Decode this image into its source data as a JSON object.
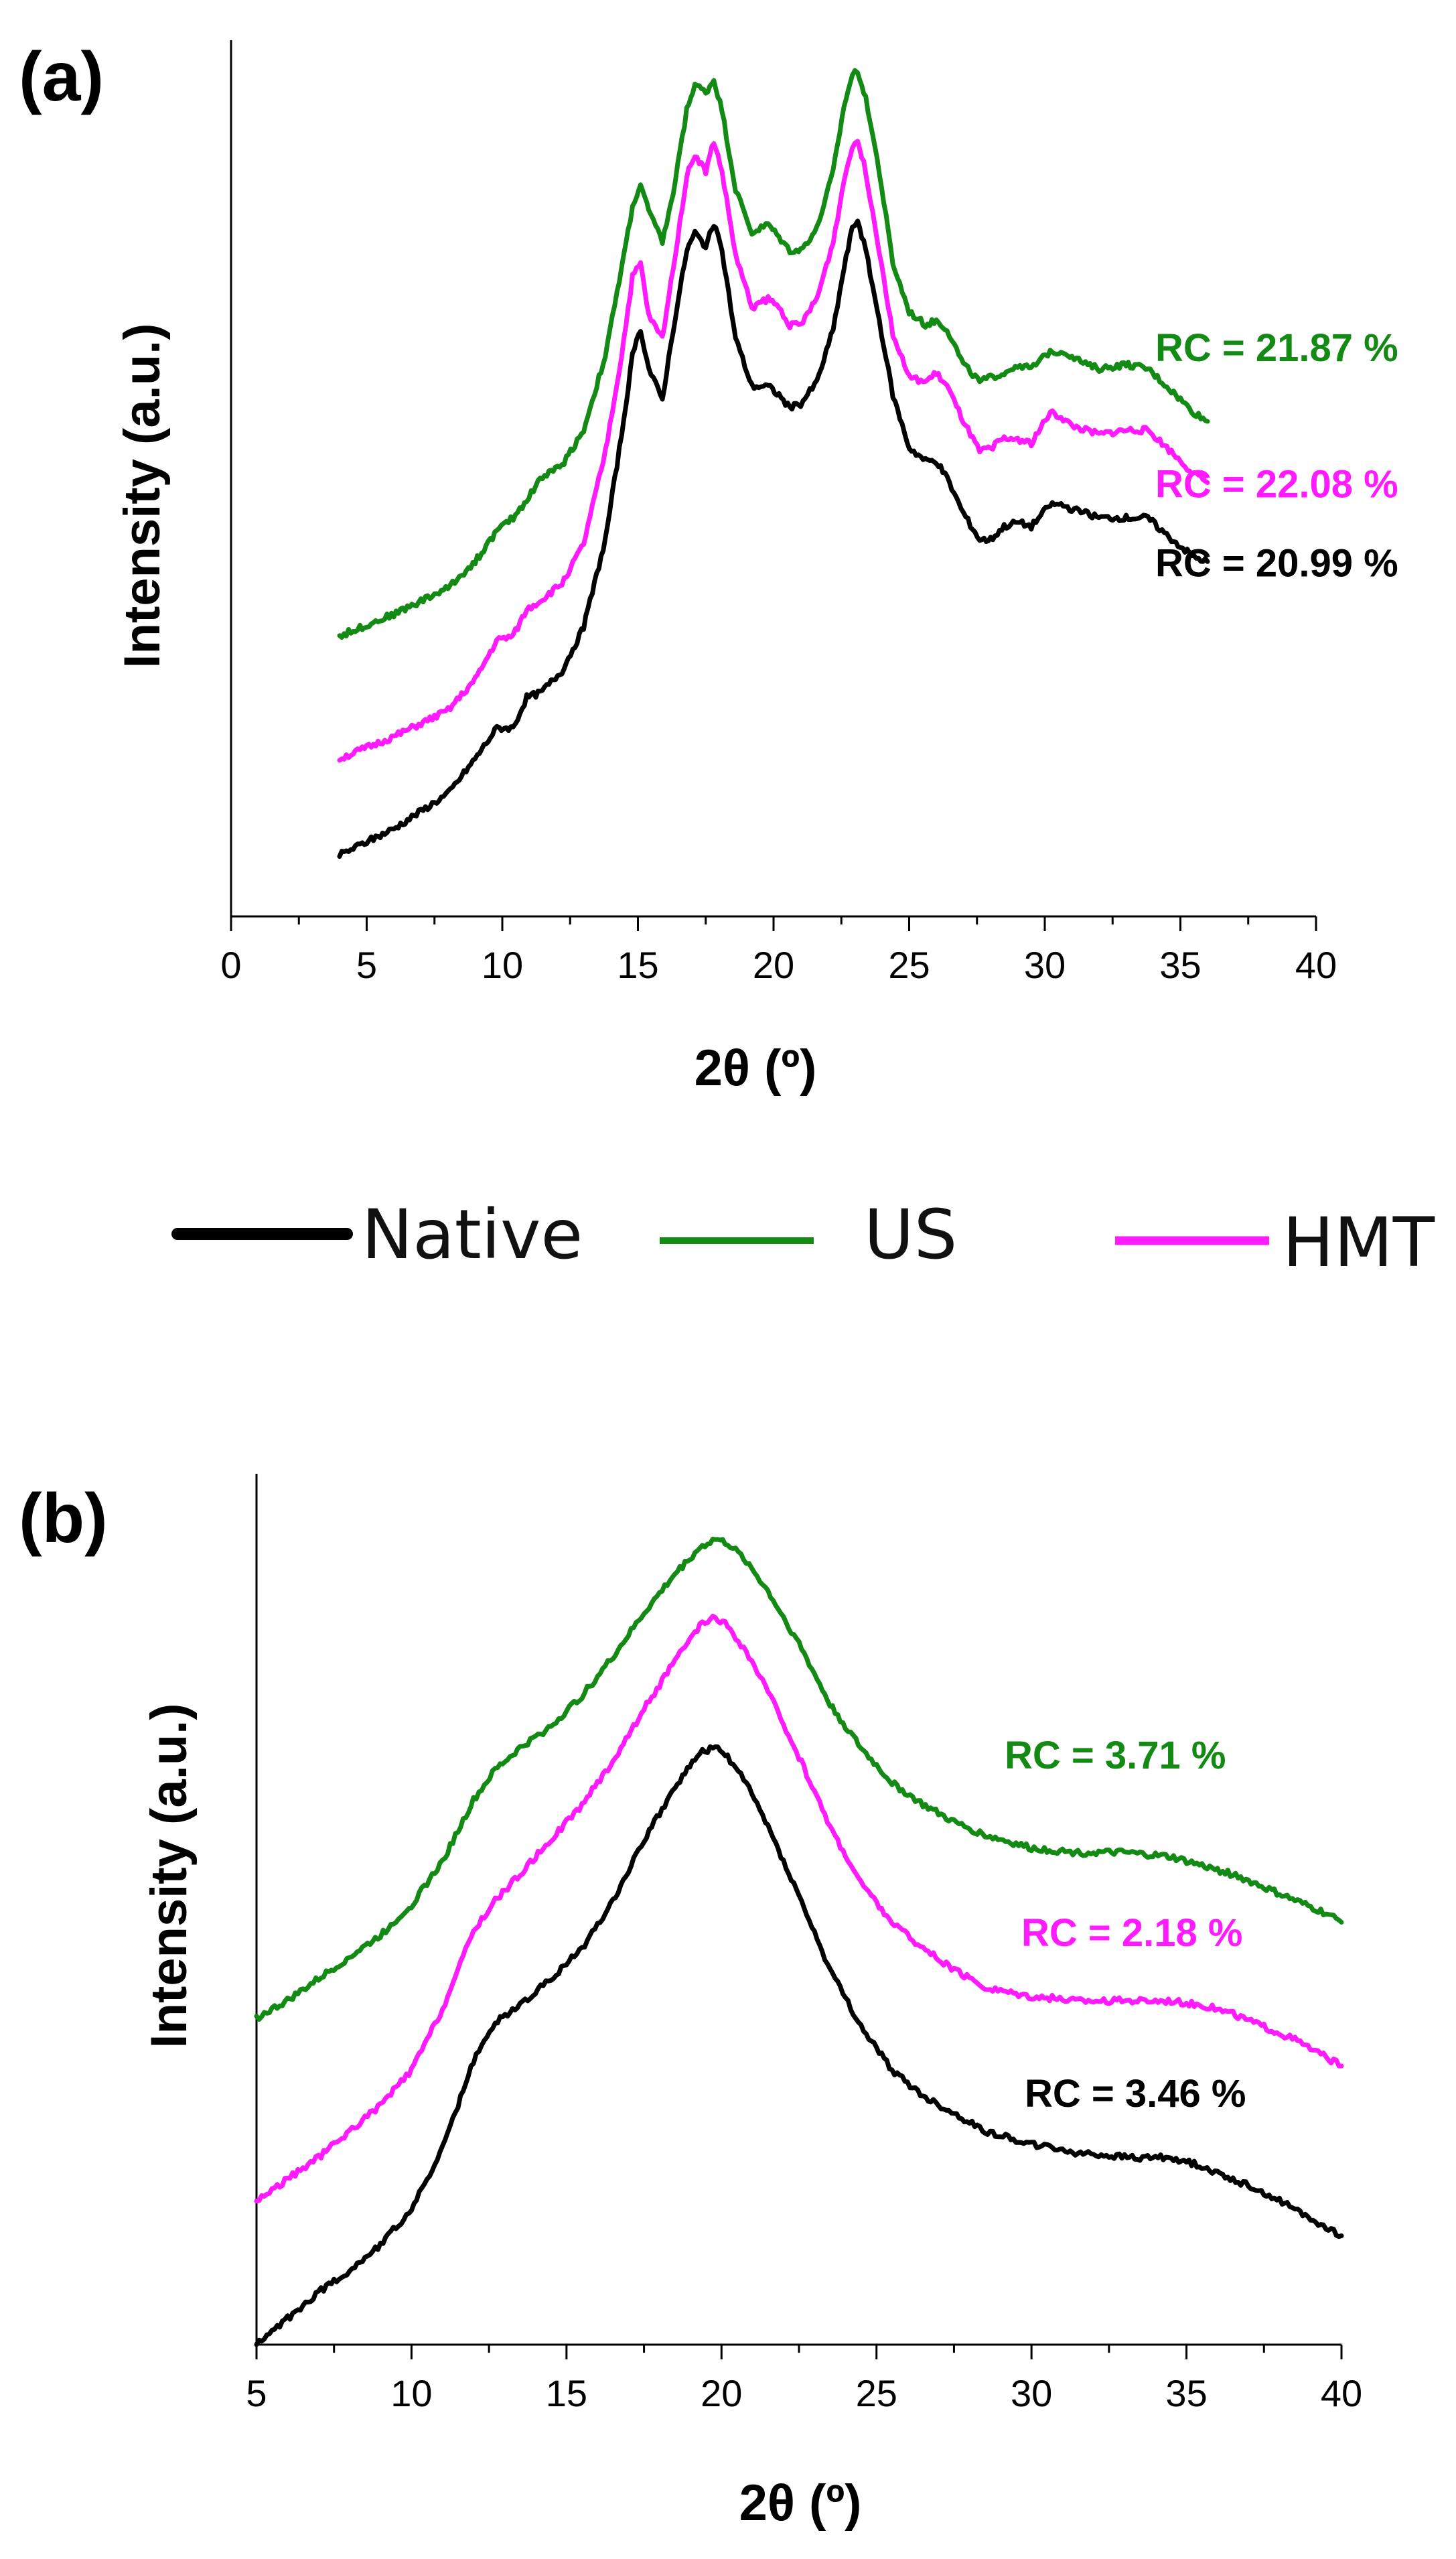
{
  "colors": {
    "native": "#000000",
    "us": "#138a13",
    "hmt": "#ff1aff"
  },
  "legend": [
    {
      "key": "native",
      "label": "Native"
    },
    {
      "key": "us",
      "label": "US"
    },
    {
      "key": "hmt",
      "label": "HMT"
    }
  ],
  "chart_data": [
    {
      "panel": "(a)",
      "type": "line",
      "xlabel": "2θ (º)",
      "ylabel": "Intensity (a.u.)",
      "xlim": [
        0,
        40
      ],
      "ylim": [
        0,
        100
      ],
      "xticks": [
        0,
        5,
        10,
        15,
        20,
        25,
        30,
        35,
        40
      ],
      "y_ticks_shown": false,
      "series": [
        {
          "key": "native",
          "name": "Native",
          "annotation": "RC = 20.99 %",
          "x": [
            4,
            6,
            8,
            9,
            9.8,
            10.4,
            10.9,
            11.4,
            12.2,
            13,
            13.8,
            14.4,
            14.8,
            15.1,
            15.4,
            15.9,
            16.3,
            16.8,
            17.1,
            17.5,
            17.8,
            18.1,
            18.6,
            19.2,
            19.8,
            20.2,
            20.6,
            21.0,
            21.6,
            22.2,
            22.6,
            22.9,
            23.1,
            23.4,
            23.9,
            24.4,
            25,
            25.6,
            26.0,
            26.4,
            27,
            27.6,
            28.0,
            28.5,
            29,
            29.5,
            30.2,
            30.6,
            31,
            31.5,
            32,
            33,
            33.8,
            34.5,
            35.5,
            36
          ],
          "y": [
            7,
            10,
            14,
            18,
            21.5,
            21.5,
            25,
            25.5,
            28,
            33,
            43,
            55,
            64,
            67,
            62.5,
            59,
            67,
            76,
            78,
            76.5,
            79,
            76,
            66,
            60.5,
            60.5,
            59.5,
            58,
            58.5,
            61,
            67,
            74,
            78.5,
            79.5,
            76,
            68,
            59.5,
            53.5,
            52,
            52,
            50,
            46,
            43,
            43,
            44.5,
            45,
            44.5,
            47,
            47,
            46.5,
            46,
            45.5,
            45.5,
            45.5,
            43.5,
            41,
            40.5
          ]
        },
        {
          "key": "hmt",
          "name": "HMT",
          "annotation": "RC = 22.08 %",
          "x": [
            4,
            6,
            8,
            9,
            9.8,
            10.4,
            10.9,
            11.4,
            12.2,
            13,
            13.8,
            14.4,
            14.8,
            15.1,
            15.4,
            15.9,
            16.3,
            16.8,
            17.1,
            17.5,
            17.8,
            18.1,
            18.6,
            19.2,
            19.8,
            20.2,
            20.6,
            21.0,
            21.6,
            22.2,
            22.6,
            22.9,
            23.1,
            23.4,
            23.9,
            24.4,
            25,
            25.6,
            26.0,
            26.4,
            27,
            27.6,
            28.0,
            28.5,
            29,
            29.5,
            30.2,
            30.6,
            31,
            31.5,
            32,
            33,
            33.8,
            34.5,
            35.5,
            36
          ],
          "y": [
            18,
            20.5,
            23.5,
            27,
            31.5,
            32,
            35,
            36,
            38,
            42.5,
            53,
            64,
            73,
            74.5,
            68.5,
            66,
            74,
            84.5,
            87,
            85,
            88.5,
            85,
            75.5,
            69.5,
            70.5,
            69.5,
            67.5,
            67.5,
            70.5,
            77,
            84,
            88,
            88.5,
            85,
            76,
            66.5,
            61.5,
            61,
            62,
            60.5,
            56.5,
            53,
            53.5,
            54.5,
            54.5,
            54,
            57.5,
            57,
            56,
            55.5,
            55,
            55.5,
            55.5,
            53.5,
            50.5,
            49.5
          ]
        },
        {
          "key": "us",
          "name": "US",
          "annotation": "RC = 21.87 %",
          "x": [
            4,
            6,
            8,
            9,
            9.8,
            10.4,
            10.9,
            11.4,
            12.2,
            13,
            13.8,
            14.4,
            14.8,
            15.1,
            15.4,
            15.9,
            16.3,
            16.8,
            17.1,
            17.5,
            17.8,
            18.1,
            18.6,
            19.2,
            19.8,
            20.2,
            20.6,
            21.0,
            21.6,
            22.2,
            22.6,
            22.9,
            23.1,
            23.4,
            23.9,
            24.4,
            25,
            25.6,
            26.0,
            26.4,
            27,
            27.6,
            28.0,
            28.5,
            29,
            29.5,
            30.2,
            30.6,
            31,
            31.5,
            32,
            33,
            33.8,
            34.5,
            35.5,
            36
          ],
          "y": [
            32,
            34.5,
            37.5,
            40.5,
            44,
            45.5,
            47.5,
            50,
            51.5,
            55.5,
            64,
            74,
            81,
            83.5,
            80.5,
            77,
            82.5,
            92,
            95,
            94,
            95.5,
            92,
            83,
            78,
            79,
            77.5,
            76,
            76,
            78.5,
            85,
            92.5,
            96,
            96.5,
            93.5,
            85,
            74.5,
            69,
            67.5,
            68,
            67,
            63,
            61,
            61.5,
            62,
            63,
            62.5,
            64.5,
            64.5,
            64,
            63,
            62.5,
            63,
            62.5,
            60.5,
            57.5,
            56.5
          ]
        }
      ]
    },
    {
      "panel": "(b)",
      "type": "line",
      "xlabel": "2θ (º)",
      "ylabel": "Intensity (a.u.)",
      "xlim": [
        5,
        40
      ],
      "ylim": [
        0,
        100
      ],
      "xticks": [
        5,
        10,
        15,
        20,
        25,
        30,
        35,
        40
      ],
      "y_ticks_shown": false,
      "series": [
        {
          "key": "native",
          "name": "Native",
          "annotation": "RC = 3.46 %",
          "x": [
            5,
            6,
            7,
            8,
            9,
            10,
            11,
            12,
            12.7,
            13.5,
            14.5,
            15.5,
            16.5,
            17.5,
            18.5,
            19.3,
            19.8,
            20.2,
            20.8,
            21.5,
            22.5,
            23.5,
            24.5,
            25.5,
            26.5,
            27.5,
            28.5,
            30,
            31.5,
            33,
            34.5,
            35.5,
            36.5,
            37.5,
            38.5,
            39.5,
            40
          ],
          "y": [
            0,
            3,
            6,
            8.5,
            11.5,
            15.5,
            22.5,
            32.5,
            37,
            39,
            42,
            45.5,
            51,
            58,
            64,
            68,
            68.5,
            67.5,
            64.5,
            59.5,
            51.5,
            43,
            36.5,
            31.5,
            28.5,
            26.5,
            24.5,
            23,
            22,
            21.5,
            21.5,
            20.5,
            19,
            17.5,
            15.5,
            13.5,
            12.5
          ]
        },
        {
          "key": "hmt",
          "name": "HMT",
          "annotation": "RC = 2.18 %",
          "x": [
            5,
            6,
            7,
            8,
            9,
            10,
            11,
            12,
            12.7,
            13.5,
            14.5,
            15.5,
            16.5,
            17.5,
            18.5,
            19.3,
            19.8,
            20.2,
            20.8,
            21.5,
            22.5,
            23.5,
            24.5,
            25.5,
            26.5,
            27.5,
            28.5,
            30,
            31.5,
            33,
            34.5,
            35.5,
            36.5,
            37.5,
            38.5,
            39.5,
            40
          ],
          "y": [
            16.5,
            19,
            21.5,
            24.5,
            27.5,
            31.5,
            38.5,
            47.5,
            51,
            54,
            58,
            62,
            67,
            73,
            78.5,
            82.5,
            83.5,
            82.5,
            79.5,
            75,
            67.5,
            59.5,
            53,
            48.5,
            45.5,
            43,
            41,
            40,
            39.5,
            39.5,
            39.5,
            39,
            38,
            36.5,
            35,
            33,
            32
          ]
        },
        {
          "key": "us",
          "name": "US",
          "annotation": "RC = 3.71 %",
          "x": [
            5,
            6,
            7,
            8,
            9,
            10,
            11,
            12,
            12.7,
            13.5,
            14.5,
            15.5,
            16.5,
            17.5,
            18.5,
            19.3,
            19.8,
            20.2,
            20.8,
            21.5,
            22.5,
            23.5,
            24.5,
            25.5,
            26.5,
            27.5,
            28.5,
            30,
            31.5,
            33,
            34.5,
            35.5,
            36.5,
            37.5,
            38.5,
            39.5,
            40
          ],
          "y": [
            37.5,
            39.5,
            42,
            44.5,
            47,
            50.5,
            55.5,
            62.5,
            66,
            68.5,
            71,
            74.5,
            79,
            84,
            88.5,
            91.5,
            92.5,
            92,
            90,
            86.5,
            80.5,
            73.5,
            68.5,
            64.5,
            62,
            60,
            58.5,
            57,
            56.5,
            56.5,
            56,
            55,
            54,
            52.5,
            51,
            49.5,
            48.5
          ]
        }
      ]
    }
  ]
}
